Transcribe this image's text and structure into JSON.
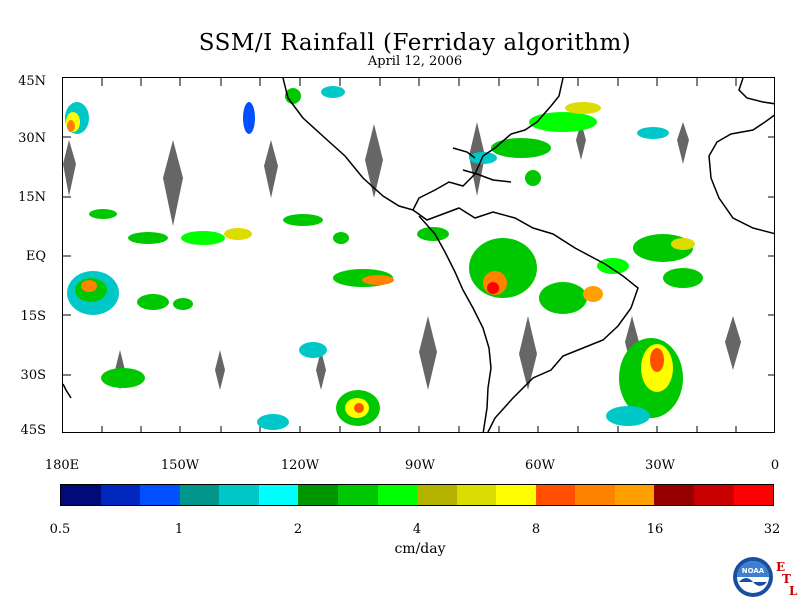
{
  "title": "SSM/I Rainfall (Ferriday algorithm)",
  "subtitle": "April 12, 2006",
  "map": {
    "lat_labels": [
      "45N",
      "30N",
      "15N",
      "EQ",
      "15S",
      "30S",
      "45S"
    ],
    "lon_labels": [
      "180E",
      "150W",
      "120W",
      "90W",
      "60W",
      "30W",
      "0"
    ],
    "lat_range": [
      -45,
      45
    ],
    "lon_range": [
      -180,
      0
    ],
    "land_outline_color": "#000000",
    "no_data_color": "#666666",
    "background_color": "#ffffff"
  },
  "colorbar": {
    "colors": [
      "#000a78",
      "#0028be",
      "#0050ff",
      "#00968c",
      "#00c8c8",
      "#00ffff",
      "#009600",
      "#00c800",
      "#00ff00",
      "#b4b400",
      "#dcdc00",
      "#ffff00",
      "#ff5000",
      "#ff8200",
      "#ffa000",
      "#960000",
      "#c80000",
      "#ff0000"
    ],
    "tick_labels": [
      "0.5",
      "1",
      "2",
      "4",
      "8",
      "16",
      "32"
    ],
    "units": "cm/day"
  },
  "logo": {
    "icon": "noaa-logo",
    "text": "NOAA",
    "etl_letters": [
      "E",
      "T",
      "L"
    ]
  }
}
